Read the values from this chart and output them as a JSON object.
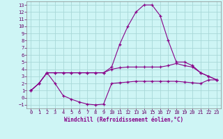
{
  "xlabel": "Windchill (Refroidissement éolien,°C)",
  "bg_color": "#cef5f5",
  "grid_color": "#a8d8d8",
  "line_color": "#880088",
  "xlim": [
    -0.5,
    23.5
  ],
  "ylim": [
    -1.5,
    13.5
  ],
  "xticks": [
    0,
    1,
    2,
    3,
    4,
    5,
    6,
    7,
    8,
    9,
    10,
    11,
    12,
    13,
    14,
    15,
    16,
    17,
    18,
    19,
    20,
    21,
    22,
    23
  ],
  "yticks": [
    -1,
    0,
    1,
    2,
    3,
    4,
    5,
    6,
    7,
    8,
    9,
    10,
    11,
    12,
    13
  ],
  "curves": [
    {
      "x": [
        0,
        1,
        2,
        3,
        4,
        5,
        6,
        7,
        8,
        9,
        10,
        11,
        12,
        13,
        14,
        15,
        16,
        17,
        18,
        19,
        20,
        21,
        22,
        23
      ],
      "y": [
        1,
        2,
        3.5,
        2.0,
        0.3,
        -0.2,
        -0.6,
        -0.9,
        -1.0,
        -0.9,
        2.0,
        2.1,
        2.2,
        2.3,
        2.3,
        2.3,
        2.3,
        2.3,
        2.3,
        2.2,
        2.1,
        2.0,
        2.5,
        2.5
      ]
    },
    {
      "x": [
        0,
        1,
        2,
        3,
        4,
        5,
        6,
        7,
        8,
        9,
        10,
        11,
        12,
        13,
        14,
        15,
        16,
        17,
        18,
        19,
        20,
        21,
        22,
        23
      ],
      "y": [
        1,
        2,
        3.5,
        3.5,
        3.5,
        3.5,
        3.5,
        3.5,
        3.5,
        3.5,
        4.0,
        4.2,
        4.3,
        4.3,
        4.3,
        4.3,
        4.3,
        4.5,
        4.8,
        4.5,
        4.3,
        3.5,
        3.0,
        2.5
      ]
    },
    {
      "x": [
        0,
        1,
        2,
        3,
        4,
        5,
        6,
        7,
        8,
        9,
        10,
        11,
        12,
        13,
        14,
        15,
        16,
        17,
        18,
        19,
        20,
        21,
        22,
        23
      ],
      "y": [
        1,
        2,
        3.5,
        3.5,
        3.5,
        3.5,
        3.5,
        3.5,
        3.5,
        3.5,
        4.3,
        7.5,
        10.0,
        12.0,
        13.0,
        13.0,
        11.5,
        8.0,
        5.0,
        5.0,
        4.5,
        3.5,
        3.0,
        2.5
      ]
    }
  ]
}
